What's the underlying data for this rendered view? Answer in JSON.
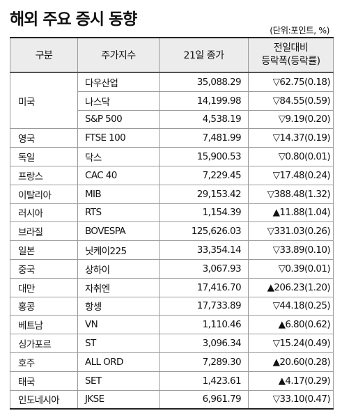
{
  "title": "해외 주요 증시 동향",
  "unit": "(단위:포인트, %)",
  "headers": {
    "country": "구분",
    "index": "주가지수",
    "close": "21일 종가",
    "change_line1": "전일대비",
    "change_line2": "등락폭(등락률)"
  },
  "rows": [
    {
      "index": "다우산업",
      "close": "35,088.29",
      "change": "▽62.75(0.18)"
    },
    {
      "index": "나스닥",
      "close": "14,199.98",
      "change": "▽84.55(0.59)"
    },
    {
      "index": "S&P 500",
      "close": "4,538.19",
      "change": "▽9.19(0.20)"
    },
    {
      "country": "영국",
      "index": "FTSE 100",
      "close": "7,481.99",
      "change": "▽14.37(0.19)"
    },
    {
      "country": "독일",
      "index": "닥스",
      "close": "15,900.53",
      "change": "▽0.80(0.01)"
    },
    {
      "country": "프랑스",
      "index": "CAC 40",
      "close": "7,229.45",
      "change": "▽17.48(0.24)"
    },
    {
      "country": "이탈리아",
      "index": "MIB",
      "close": "29,153.42",
      "change": "▽388.48(1.32)"
    },
    {
      "country": "러시아",
      "index": "RTS",
      "close": "1,154.39",
      "change": "▲11.88(1.04)"
    },
    {
      "country": "브라질",
      "index": "BOVESPA",
      "close": "125,626.03",
      "change": "▽331.03(0.26)"
    },
    {
      "country": "일본",
      "index": "닛케이225",
      "close": "33,354.14",
      "change": "▽33.89(0.10)"
    },
    {
      "country": "중국",
      "index": "상하이",
      "close": "3,067.93",
      "change": "▽0.39(0.01)"
    },
    {
      "country": "대만",
      "index": "자취엔",
      "close": "17,416.70",
      "change": "▲206.23(1.20)"
    },
    {
      "country": "홍콩",
      "index": "항셍",
      "close": "17,733.89",
      "change": "▽44.18(0.25)"
    },
    {
      "country": "베트남",
      "index": "VN",
      "close": "1,110.46",
      "change": "▲6.80(0.62)"
    },
    {
      "country": "싱가포르",
      "index": "ST",
      "close": "3,096.34",
      "change": "▽15.24(0.49)"
    },
    {
      "country": "호주",
      "index": "ALL ORD",
      "close": "7,289.30",
      "change": "▲20.60(0.28)"
    },
    {
      "country": "태국",
      "index": "SET",
      "close": "1,423.61",
      "change": "▲4.17(0.29)"
    },
    {
      "country": "인도네시아",
      "index": "JKSE",
      "close": "6,961.79",
      "change": "▽33.10(0.47)"
    }
  ],
  "us_country": "미국"
}
